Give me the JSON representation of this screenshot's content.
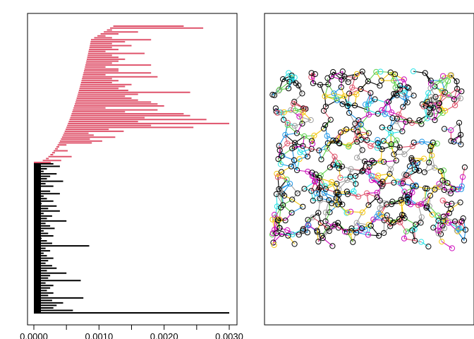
{
  "chart_data": [
    {
      "type": "bar",
      "orientation": "horizontal",
      "xlim": [
        0,
        0.003
      ],
      "ticks": [
        0.0,
        0.001,
        0.002,
        0.003
      ],
      "tick_labels": [
        "0.0000",
        "0.0010",
        "0.0020",
        "0.0030"
      ],
      "xlabel": "",
      "ylabel": "",
      "series": [
        {
          "color": "#DF536B",
          "values": [
            0.00026,
            0.00042,
            0.0002,
            0.00058,
            0.00018,
            0.00032,
            0.00052,
            0.00025,
            0.00035,
            0.0005,
            0.00089,
            0.00105,
            0.00086,
            0.00125,
            0.00092,
            0.00084,
            0.00138,
            0.00115,
            0.00245,
            0.0018,
            0.003,
            0.0016,
            0.00265,
            0.0017,
            0.0024,
            0.0023,
            0.0014,
            0.0019,
            0.0011,
            0.002,
            0.0019,
            0.0018,
            0.0016,
            0.0015,
            0.0014,
            0.0016,
            0.0024,
            0.00145,
            0.0013,
            0.0014,
            0.0015,
            0.0012,
            0.0013,
            0.0012,
            0.0019,
            0.0011,
            0.0018,
            0.0013,
            0.0013,
            0.0011,
            0.0018,
            0.0012,
            0.0013,
            0.0014,
            0.0013,
            0.0012,
            0.0017,
            0.0011,
            0.0013,
            0.0012,
            0.0015,
            0.0012,
            0.0014,
            0.0018,
            0.0012,
            0.0011,
            0.0013,
            0.0016,
            0.0012,
            0.0026,
            0.0023
          ]
        },
        {
          "color": "#000000",
          "values": [
            0.0003,
            0.0004,
            0.0002,
            0.00015,
            0.00035,
            0.00025,
            0.0002,
            0.00045,
            0.00018,
            0.0003,
            0.0001,
            0.00025,
            0.0004,
            0.00015,
            0.0002,
            0.0003,
            0.00012,
            0.00035,
            0.00022,
            0.0004,
            0.00015,
            0.00028,
            0.0002,
            0.0005,
            0.00018,
            0.00025,
            0.00032,
            0.00015,
            0.00022,
            0.0003,
            0.00012,
            0.0002,
            0.00028,
            0.00085,
            0.00018,
            0.00025,
            0.00015,
            0.0002,
            0.0003,
            0.00022,
            0.00018,
            0.00028,
            0.00035,
            0.0002,
            0.0005,
            0.00025,
            0.00022,
            0.00072,
            0.00018,
            0.0003,
            0.00025,
            0.0002,
            0.0003,
            0.00022,
            0.00076,
            0.00028,
            0.00045,
            0.00035,
            0.0003,
            0.0006,
            0.003
          ]
        }
      ]
    },
    {
      "type": "scatter",
      "description_colors": [
        "#000000",
        "#DF536B",
        "#61D04F",
        "#2297E6",
        "#28E2E5",
        "#CD0BBC",
        "#F5C710",
        "#9E9E9E"
      ]
    }
  ]
}
